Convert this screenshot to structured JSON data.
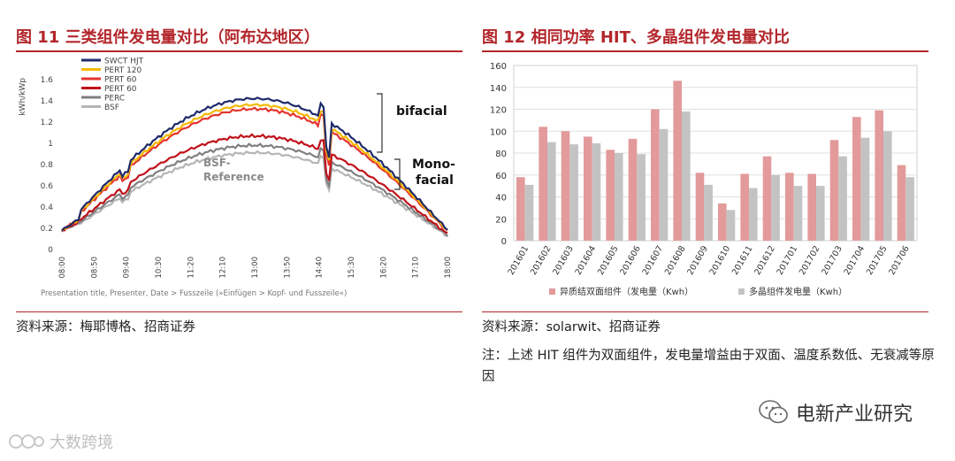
{
  "left": {
    "title": "图 11  三类组件发电量对比（阿布达地区）",
    "source": "资料来源：梅耶博格、招商证券",
    "chart_data": {
      "type": "line",
      "ylabel": "kWh/kWp",
      "ylim": [
        0,
        1.6
      ],
      "yticks": [
        "0",
        "0.2",
        "0.4",
        "0.6",
        "0.8",
        "1",
        "1.2",
        "1.4",
        "1.6"
      ],
      "xticks": [
        "08:00",
        "08:50",
        "09:40",
        "10:30",
        "11:20",
        "12:10",
        "13:00",
        "13:50",
        "14:40",
        "15:30",
        "16:20",
        "17:10",
        "18:00"
      ],
      "legend": [
        "SWCT HJT",
        "PERT 120",
        "PERT 60",
        "PERT 60",
        "PERC",
        "BSF"
      ],
      "legend_colors": [
        "#1f2a6b",
        "#f5b800",
        "#e3342f",
        "#c0121a",
        "#808080",
        "#b5b5b5"
      ],
      "series": [
        {
          "name": "SWCT HJT",
          "peak": 1.42
        },
        {
          "name": "PERT 120",
          "peak": 1.36
        },
        {
          "name": "PERT 60",
          "peak": 1.32
        },
        {
          "name": "PERT 60",
          "peak": 1.06
        },
        {
          "name": "PERC",
          "peak": 0.97
        },
        {
          "name": "BSF",
          "peak": 0.9
        }
      ],
      "annotations": {
        "bifacial": "bifacial",
        "mono1": "Mono-",
        "mono2": "facial",
        "bsf1": "BSF-",
        "bsf2": "Reference"
      },
      "footer": "Presentation title, Presenter, Date > Fusszeile (»Einfügen > Kopf- und Fusszeile«)"
    }
  },
  "right": {
    "title": "图 12  相同功率 HIT、多晶组件发电量对比",
    "source": "资料来源：solarwit、招商证券",
    "note": "注：上述 HIT 组件为双面组件，发电量增益由于双面、温度系数低、无衰减等原因",
    "chart_data": {
      "type": "bar",
      "ylim": [
        0,
        160
      ],
      "yticks": [
        "0",
        "20",
        "40",
        "60",
        "80",
        "100",
        "120",
        "140",
        "160"
      ],
      "categories": [
        "201601",
        "201602",
        "201603",
        "201604",
        "201605",
        "201606",
        "201607",
        "201608",
        "201609",
        "201610",
        "201611",
        "201612",
        "201701",
        "201702",
        "201703",
        "201704",
        "201705",
        "201706"
      ],
      "series": [
        {
          "name": "异质结双面组件（发电量（Kwh）",
          "color": "#e39a9a",
          "values": [
            58,
            104,
            100,
            95,
            83,
            93,
            120,
            146,
            62,
            34,
            61,
            77,
            62,
            61,
            92,
            113,
            119,
            69
          ]
        },
        {
          "name": "多晶组件发电量（Kwh）",
          "color": "#c3c3c3",
          "values": [
            51,
            90,
            88,
            89,
            80,
            79,
            102,
            118,
            51,
            28,
            48,
            60,
            50,
            50,
            77,
            94,
            100,
            58
          ]
        }
      ]
    }
  },
  "watermark": "大数跨境",
  "brand": "电新产业研究"
}
